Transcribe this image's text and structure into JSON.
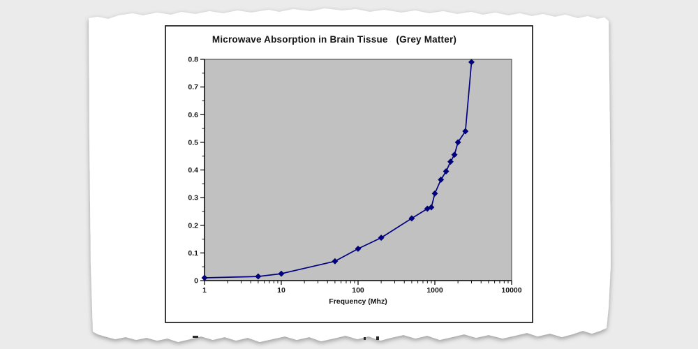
{
  "document": {
    "background_color": "#ebebeb",
    "paper_color": "#ffffff"
  },
  "chart_data": {
    "type": "line",
    "title": "Microwave Absorption in Brain Tissue   (Grey Matter)",
    "xlabel": "Frequency (Mhz)",
    "ylabel": "",
    "xscale": "log",
    "xlim": [
      1,
      10000
    ],
    "ylim": [
      0,
      0.8
    ],
    "x_tick_labels": [
      "1",
      "10",
      "100",
      "1000",
      "10000"
    ],
    "y_tick_labels": [
      "0",
      "0.1",
      "0.2",
      "0.3",
      "0.4",
      "0.5",
      "0.6",
      "0.7",
      "0.8"
    ],
    "grid": false,
    "legend_position": null,
    "plot_background": "#c1c1c1",
    "line_color": "#000080",
    "marker": "diamond",
    "series": [
      {
        "x": [
          1,
          5,
          10,
          50,
          100,
          200,
          500,
          800,
          900,
          1000,
          1200,
          1400,
          1600,
          1800,
          2000,
          2500,
          3000
        ],
        "y": [
          0.01,
          0.015,
          0.025,
          0.07,
          0.115,
          0.155,
          0.225,
          0.26,
          0.265,
          0.315,
          0.365,
          0.395,
          0.43,
          0.455,
          0.5,
          0.54,
          0.79
        ]
      }
    ]
  }
}
